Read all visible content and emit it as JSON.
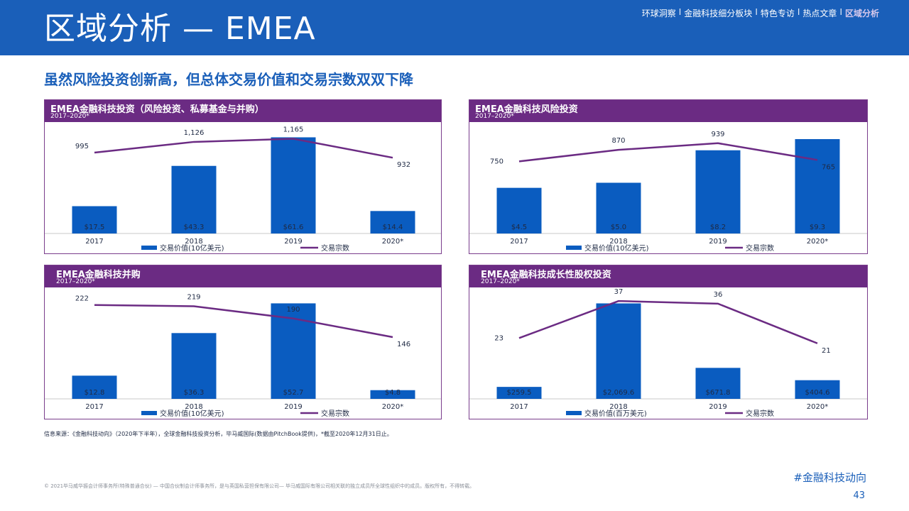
{
  "header": {
    "title": "区域分析 — EMEA",
    "nav": [
      "环球洞察",
      "金融科技细分板块",
      "特色专访",
      "热点文章",
      "区域分析"
    ],
    "nav_separator": "I",
    "active_nav": "区域分析"
  },
  "subtitle": "虽然风险投资创新高，但总体交易价值和交易宗数双双下降",
  "legend": {
    "bar_label_bn": "交易价值(10亿美元)",
    "bar_label_mn": "交易价值(百万美元)",
    "line_label": "交易宗数"
  },
  "colors": {
    "header_blue": "#1a5fb9",
    "bar_blue": "#0a5cc0",
    "line_purple": "#6b2b83",
    "panel_purple": "#6b2b83"
  },
  "chart_data": [
    {
      "type": "bar",
      "title": "EMEA金融科技投资（风险投资、私募基金与并购）",
      "subtitle": "2017–2020*",
      "categories": [
        "2017",
        "2018",
        "2019",
        "2020*"
      ],
      "series": [
        {
          "name": "交易价值(10亿美元)",
          "type": "bar",
          "values": [
            17.5,
            43.3,
            61.6,
            14.4
          ],
          "labels": [
            "$17.5",
            "$43.3",
            "$61.6",
            "$14.4"
          ]
        },
        {
          "name": "交易宗数",
          "type": "line",
          "values": [
            995,
            1126,
            1165,
            932
          ],
          "labels": [
            "995",
            "1,126",
            "1,165",
            "932"
          ]
        }
      ],
      "bar_ylim": [
        0,
        65
      ],
      "line_ylim": [
        0,
        1300
      ]
    },
    {
      "type": "bar",
      "title": "EMEA金融科技风险投资",
      "subtitle": "2017–2020*",
      "categories": [
        "2017",
        "2018",
        "2019",
        "2020*"
      ],
      "series": [
        {
          "name": "交易价值(10亿美元)",
          "type": "bar",
          "values": [
            4.5,
            5.0,
            8.2,
            9.3
          ],
          "labels": [
            "$4.5",
            "$5.0",
            "$8.2",
            "$9.3"
          ]
        },
        {
          "name": "交易宗数",
          "type": "line",
          "values": [
            750,
            870,
            939,
            765
          ],
          "labels": [
            "750",
            "870",
            "939",
            "765"
          ]
        }
      ],
      "bar_ylim": [
        0,
        10
      ],
      "line_ylim": [
        0,
        1100
      ]
    },
    {
      "type": "bar",
      "title": "EMEA金融科技并购",
      "subtitle": "2017–2020*",
      "categories": [
        "2017",
        "2018",
        "2019",
        "2020*"
      ],
      "series": [
        {
          "name": "交易价值(10亿美元)",
          "type": "bar",
          "values": [
            12.8,
            36.3,
            52.7,
            4.8
          ],
          "labels": [
            "$12.8",
            "$36.3",
            "$52.7",
            "$4.8"
          ]
        },
        {
          "name": "交易宗数",
          "type": "line",
          "values": [
            222,
            219,
            190,
            146
          ],
          "labels": [
            "222",
            "219",
            "190",
            "146"
          ]
        }
      ],
      "bar_ylim": [
        0,
        56
      ],
      "line_ylim": [
        0,
        250
      ]
    },
    {
      "type": "bar",
      "title": "EMEA金融科技成长性股权投资",
      "subtitle": "2017–2020*",
      "categories": [
        "2017",
        "2018",
        "2019",
        "2020*"
      ],
      "series": [
        {
          "name": "交易价值(百万美元)",
          "type": "bar",
          "values": [
            259.5,
            2069.6,
            671.8,
            404.6
          ],
          "labels": [
            "$259.5",
            "$2,069.6",
            "$671.8",
            "$404.6"
          ]
        },
        {
          "name": "交易宗数",
          "type": "line",
          "values": [
            23,
            37,
            36,
            21
          ],
          "labels": [
            "23",
            "37",
            "36",
            "21"
          ]
        }
      ],
      "bar_ylim": [
        0,
        2200
      ],
      "line_ylim": [
        0,
        40
      ]
    }
  ],
  "source_note": "信息来源：《金融科技动向》（2020年下半年），全球金融科技投资分析，毕马威国际(数据由PitchBook提供)，*截至2020年12月31日止。",
  "footer": {
    "copyright": "© 2021毕马威华振会计师事务所(特殊普通合伙) — 中国合伙制会计师事务所，是与英国私营担保有限公司— 毕马威国际有限公司相关联的独立成员所全球性组织中的成员。版权所有，不得转载。",
    "hashtag": "#金融科技动向",
    "page_number": "43"
  }
}
